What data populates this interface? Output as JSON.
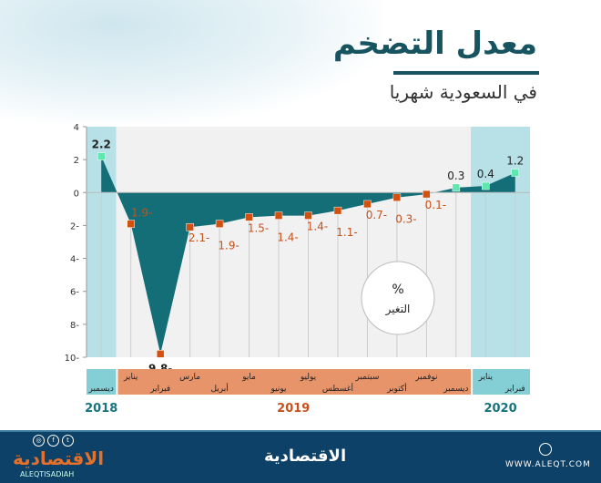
{
  "header": {
    "title": "معدل التضخم",
    "subtitle": "في السعودية شهريا"
  },
  "chart_data": {
    "type": "area",
    "title": "معدل التضخم",
    "subtitle": "في السعودية شهريا",
    "unit_label": "%",
    "unit_caption": "التغير",
    "ylim": [
      -10,
      4
    ],
    "yticks": [
      4,
      2,
      0,
      -2,
      -4,
      -6,
      -8,
      -10
    ],
    "ytick_labels": [
      "4",
      "2",
      "0",
      "2-",
      "4-",
      "6-",
      "8-",
      "10-"
    ],
    "categories": [
      "ديسمبر",
      "يناير",
      "فبراير",
      "مارس",
      "أبريل",
      "مايو",
      "يونيو",
      "يوليو",
      "أغسطس",
      "سبتمبر",
      "أكتوبر",
      "نوفمبر",
      "ديسمبر",
      "يناير",
      "فبراير"
    ],
    "years": [
      {
        "label": "2018",
        "count": 1,
        "color": "#17737d"
      },
      {
        "label": "2019",
        "count": 12,
        "color": "#c8501a"
      },
      {
        "label": "2020",
        "count": 2,
        "color": "#17737d"
      }
    ],
    "values": [
      2.2,
      -1.9,
      -9.8,
      -2.1,
      -1.9,
      -1.5,
      -1.4,
      -1.4,
      -1.1,
      -0.7,
      -0.3,
      -0.1,
      0.3,
      0.4,
      1.2
    ],
    "data_labels": [
      "2.2",
      "1.9-",
      "9.8-",
      "2.1-",
      "1.9-",
      "1.5-",
      "1.4-",
      "1.4-",
      "1.1-",
      "0.7-",
      "0.3-",
      "0.1-",
      "0.3",
      "0.4",
      "1.2"
    ],
    "colors": {
      "area": "#136e78",
      "positive_marker": "#5ee8b0",
      "negative_marker": "#d4500f",
      "negative_label": "#c8501a",
      "band": "#b7e1e6",
      "month_bar_2019": "#e8946b"
    }
  },
  "footer": {
    "logo": "الاقتصادية",
    "handle": "ALEQTISADIAH",
    "center_logo": "الاقتصادية",
    "website": "WWW.ALEQT.COM"
  }
}
